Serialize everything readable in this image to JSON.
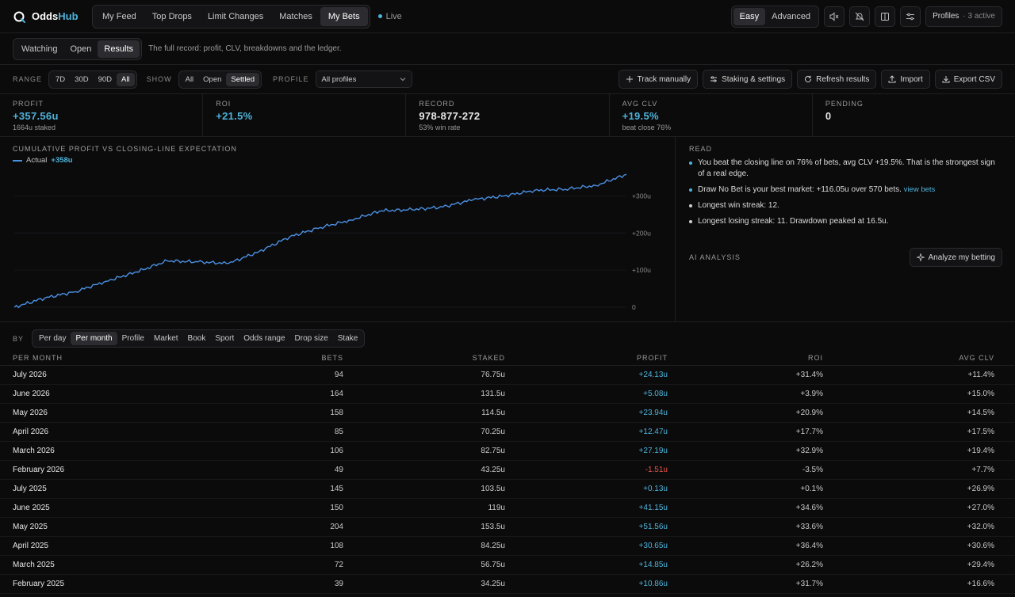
{
  "app": {
    "name_a": "Odds",
    "name_b": "Hub"
  },
  "nav": [
    "My Feed",
    "Top Drops",
    "Limit Changes",
    "Matches",
    "My Bets"
  ],
  "nav_active": 4,
  "live_label": "Live",
  "mode": {
    "easy": "Easy",
    "advanced": "Advanced"
  },
  "profiles_label": "Profiles",
  "profiles_active": "· 3 active",
  "subtabs": [
    "Watching",
    "Open",
    "Results"
  ],
  "subtab_description": "The full record: profit, CLV, breakdowns and the ledger.",
  "filters": {
    "range_label": "RANGE",
    "range_options": [
      "7D",
      "30D",
      "90D",
      "All"
    ],
    "show_label": "SHOW",
    "show_options": [
      "All",
      "Open",
      "Settled"
    ],
    "profile_label": "PROFILE",
    "profile_value": "All profiles"
  },
  "actions": {
    "track": "Track manually",
    "staking": "Staking & settings",
    "refresh": "Refresh results",
    "import": "Import",
    "export": "Export CSV"
  },
  "stats": [
    {
      "title": "PROFIT",
      "value": "+357.56u",
      "sub": "1664u staked"
    },
    {
      "title": "ROI",
      "value": "+21.5%",
      "sub": ""
    },
    {
      "title": "RECORD",
      "value": "978-877-272",
      "sub": "53% win rate"
    },
    {
      "title": "AVG CLV",
      "value": "+19.5%",
      "sub": "beat close 76%"
    },
    {
      "title": "PENDING",
      "value": "0",
      "sub": ""
    }
  ],
  "chart_data": {
    "type": "line",
    "title": "CUMULATIVE PROFIT VS CLOSING-LINE EXPECTATION",
    "series": [
      {
        "name": "Actual",
        "legend_value": "+358u",
        "x": [
          0,
          5,
          10,
          15,
          20,
          25,
          30,
          35,
          40,
          45,
          50,
          55,
          60,
          65,
          70,
          75,
          80,
          85,
          90,
          95,
          100
        ],
        "values": [
          0,
          25,
          42,
          70,
          95,
          125,
          122,
          118,
          150,
          190,
          215,
          235,
          260,
          263,
          270,
          290,
          300,
          315,
          318,
          328,
          358
        ]
      }
    ],
    "yticks": [
      "0",
      "+100u",
      "+200u",
      "+300u"
    ],
    "ylim": [
      0,
      350
    ],
    "color": "#4a90e2"
  },
  "read": {
    "title": "READ",
    "items": [
      {
        "text": "You beat the closing line on 76% of bets, avg CLV +19.5%. That is the strongest sign of a real edge.",
        "link": "",
        "dot": "#4fb3d9"
      },
      {
        "text": "Draw No Bet is your best market: +116.05u over 570 bets.",
        "link": "view bets",
        "dot": "#4fb3d9"
      },
      {
        "text": "Longest win streak: 12.",
        "link": "",
        "dot": "#cfcfcf"
      },
      {
        "text": "Longest losing streak: 11. Drawdown peaked at 16.5u.",
        "link": "",
        "dot": "#cfcfcf"
      }
    ],
    "ai_title": "AI ANALYSIS",
    "ai_button": "Analyze my betting"
  },
  "breakdown": {
    "by_label": "BY",
    "options": [
      "Per day",
      "Per month",
      "Profile",
      "Market",
      "Book",
      "Sport",
      "Odds range",
      "Drop size",
      "Stake"
    ],
    "active": 1,
    "columns": [
      "PER MONTH",
      "BETS",
      "STAKED",
      "PROFIT",
      "ROI",
      "AVG CLV"
    ],
    "rows": [
      [
        "July 2026",
        "94",
        "76.75u",
        "+24.13u",
        "+31.4%",
        "+11.4%"
      ],
      [
        "June 2026",
        "164",
        "131.5u",
        "+5.08u",
        "+3.9%",
        "+15.0%"
      ],
      [
        "May 2026",
        "158",
        "114.5u",
        "+23.94u",
        "+20.9%",
        "+14.5%"
      ],
      [
        "April 2026",
        "85",
        "70.25u",
        "+12.47u",
        "+17.7%",
        "+17.5%"
      ],
      [
        "March 2026",
        "106",
        "82.75u",
        "+27.19u",
        "+32.9%",
        "+19.4%"
      ],
      [
        "February 2026",
        "49",
        "43.25u",
        "-1.51u",
        "-3.5%",
        "+7.7%"
      ],
      [
        "July 2025",
        "145",
        "103.5u",
        "+0.13u",
        "+0.1%",
        "+26.9%"
      ],
      [
        "June 2025",
        "150",
        "119u",
        "+41.15u",
        "+34.6%",
        "+27.0%"
      ],
      [
        "May 2025",
        "204",
        "153.5u",
        "+51.56u",
        "+33.6%",
        "+32.0%"
      ],
      [
        "April 2025",
        "108",
        "84.25u",
        "+30.65u",
        "+36.4%",
        "+30.6%"
      ],
      [
        "March 2025",
        "72",
        "56.75u",
        "+14.85u",
        "+26.2%",
        "+29.4%"
      ],
      [
        "February 2025",
        "39",
        "34.25u",
        "+10.86u",
        "+31.7%",
        "+16.6%"
      ]
    ]
  },
  "colors": {
    "accent": "#4fb3d9",
    "negative": "#e5534b",
    "line": "#4a90e2",
    "bg": "#0b0b0c"
  }
}
